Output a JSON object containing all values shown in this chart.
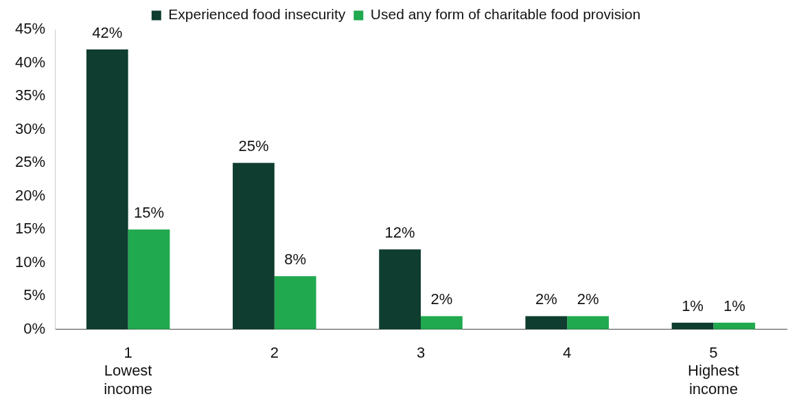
{
  "chart_data": {
    "type": "bar",
    "categories": [
      "1\nLowest\nincome",
      "2",
      "3",
      "4",
      "5\nHighest\nincome"
    ],
    "series": [
      {
        "name": "Experienced food insecurity",
        "color": "#0f3d2f",
        "values": [
          42,
          25,
          12,
          2,
          1
        ],
        "value_labels": [
          "42%",
          "25%",
          "12%",
          "2%",
          "1%"
        ]
      },
      {
        "name": "Used any form of charitable food provision",
        "color": "#20a94f",
        "values": [
          15,
          8,
          2,
          2,
          1
        ],
        "value_labels": [
          "15%",
          "8%",
          "2%",
          "2%",
          "1%"
        ]
      }
    ],
    "ylim": [
      0,
      45
    ],
    "yticks": [
      {
        "value": 0,
        "label": "0%"
      },
      {
        "value": 5,
        "label": "5%"
      },
      {
        "value": 10,
        "label": "10%"
      },
      {
        "value": 15,
        "label": "15%"
      },
      {
        "value": 20,
        "label": "20%"
      },
      {
        "value": 25,
        "label": "25%"
      },
      {
        "value": 30,
        "label": "30%"
      },
      {
        "value": 35,
        "label": "35%"
      },
      {
        "value": 40,
        "label": "40%"
      },
      {
        "value": 45,
        "label": "45%"
      }
    ],
    "grid": false,
    "legend": "top"
  }
}
